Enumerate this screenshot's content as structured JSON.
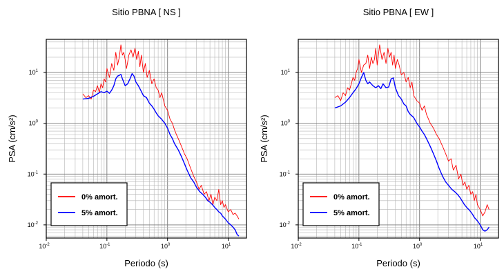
{
  "chart_data": [
    {
      "type": "line",
      "title": "Sitio PBNA [ NS ]",
      "xlabel": "Periodo (s)",
      "ylabel": "PSA (cm/s²)",
      "xscale": "log",
      "yscale": "log",
      "xlim": [
        0.01,
        20
      ],
      "ylim": [
        0.0055,
        45
      ],
      "grid": true,
      "legend": "bottom-left",
      "series": [
        {
          "name": "0% amort.",
          "color": "#ff0000",
          "x": [
            0.04,
            0.045,
            0.05,
            0.055,
            0.06,
            0.065,
            0.07,
            0.075,
            0.08,
            0.085,
            0.09,
            0.095,
            0.1,
            0.11,
            0.12,
            0.13,
            0.14,
            0.15,
            0.16,
            0.17,
            0.18,
            0.19,
            0.2,
            0.21,
            0.22,
            0.23,
            0.25,
            0.27,
            0.29,
            0.31,
            0.33,
            0.35,
            0.37,
            0.4,
            0.43,
            0.46,
            0.5,
            0.55,
            0.6,
            0.65,
            0.7,
            0.75,
            0.8,
            0.9,
            1.0,
            1.1,
            1.2,
            1.3,
            1.4,
            1.5,
            1.7,
            1.9,
            2.1,
            2.4,
            2.7,
            3.0,
            3.3,
            3.6,
            4.0,
            4.4,
            4.8,
            5.2,
            5.6,
            6.0,
            6.5,
            7.0,
            7.5,
            8.0,
            8.5,
            9.0,
            10,
            11,
            12,
            13,
            14,
            15
          ],
          "values": [
            3.8,
            3.2,
            3.5,
            3.0,
            4.5,
            4.2,
            5.5,
            4.0,
            6.0,
            5.0,
            7.5,
            6.5,
            12,
            8.0,
            15,
            11,
            25,
            14,
            20,
            35,
            22,
            25,
            18,
            12,
            16,
            22,
            28,
            20,
            30,
            18,
            26,
            13,
            22,
            10,
            15,
            8.0,
            11,
            6.0,
            7.5,
            5.0,
            4.5,
            3.2,
            4.0,
            2.2,
            1.8,
            1.2,
            1.0,
            0.75,
            0.6,
            0.5,
            0.35,
            0.25,
            0.2,
            0.13,
            0.09,
            0.07,
            0.05,
            0.06,
            0.04,
            0.045,
            0.03,
            0.04,
            0.025,
            0.035,
            0.03,
            0.05,
            0.025,
            0.03,
            0.022,
            0.025,
            0.018,
            0.02,
            0.016,
            0.017,
            0.015,
            0.013
          ]
        },
        {
          "name": "5% amort.",
          "color": "#0000ff",
          "x": [
            0.04,
            0.05,
            0.06,
            0.07,
            0.08,
            0.09,
            0.1,
            0.11,
            0.12,
            0.13,
            0.14,
            0.15,
            0.16,
            0.17,
            0.18,
            0.2,
            0.22,
            0.24,
            0.26,
            0.28,
            0.3,
            0.33,
            0.36,
            0.4,
            0.45,
            0.5,
            0.55,
            0.6,
            0.65,
            0.7,
            0.8,
            0.9,
            1.0,
            1.1,
            1.2,
            1.3,
            1.5,
            1.7,
            1.9,
            2.1,
            2.4,
            2.7,
            3.0,
            3.4,
            3.8,
            4.2,
            4.6,
            5.0,
            5.5,
            6.0,
            6.5,
            7.0,
            7.5,
            8.0,
            9.0,
            10,
            11,
            12,
            13,
            14,
            15
          ],
          "values": [
            3.0,
            3.1,
            3.4,
            3.8,
            4.2,
            4.0,
            4.3,
            3.9,
            4.5,
            5.5,
            7.5,
            8.5,
            8.8,
            9.2,
            7.5,
            5.5,
            6.0,
            7.5,
            9.5,
            8.5,
            6.5,
            5.5,
            4.5,
            3.5,
            3.2,
            2.5,
            2.2,
            1.9,
            1.6,
            1.4,
            1.2,
            1.0,
            0.8,
            0.6,
            0.5,
            0.4,
            0.3,
            0.22,
            0.16,
            0.12,
            0.085,
            0.07,
            0.055,
            0.045,
            0.04,
            0.035,
            0.03,
            0.028,
            0.025,
            0.022,
            0.02,
            0.018,
            0.017,
            0.015,
            0.013,
            0.011,
            0.01,
            0.009,
            0.008,
            0.0065,
            0.006
          ]
        }
      ]
    },
    {
      "type": "line",
      "title": "Sitio PBNA [ EW ]",
      "xlabel": "Periodo (s)",
      "ylabel": "PSA (cm/s²)",
      "xscale": "log",
      "yscale": "log",
      "xlim": [
        0.01,
        20
      ],
      "ylim": [
        0.0055,
        45
      ],
      "grid": true,
      "legend": "bottom-left",
      "series": [
        {
          "name": "0% amort.",
          "color": "#ff0000",
          "x": [
            0.04,
            0.045,
            0.05,
            0.055,
            0.06,
            0.065,
            0.07,
            0.075,
            0.08,
            0.085,
            0.09,
            0.095,
            0.1,
            0.11,
            0.12,
            0.13,
            0.14,
            0.15,
            0.16,
            0.17,
            0.18,
            0.19,
            0.2,
            0.22,
            0.24,
            0.26,
            0.28,
            0.3,
            0.32,
            0.34,
            0.36,
            0.38,
            0.4,
            0.43,
            0.46,
            0.5,
            0.55,
            0.6,
            0.65,
            0.7,
            0.75,
            0.8,
            0.9,
            1.0,
            1.1,
            1.2,
            1.3,
            1.5,
            1.7,
            1.9,
            2.1,
            2.4,
            2.7,
            3.0,
            3.3,
            3.6,
            4.0,
            4.4,
            4.8,
            5.2,
            5.6,
            6.0,
            6.5,
            7.0,
            7.5,
            8.0,
            8.5,
            9.0,
            10,
            11,
            12,
            13,
            14
          ],
          "values": [
            3.2,
            3.5,
            2.8,
            4.0,
            3.5,
            5.0,
            4.5,
            6.0,
            8.0,
            7.0,
            10,
            12,
            18,
            10,
            14,
            15,
            22,
            12,
            20,
            15,
            18,
            30,
            14,
            35,
            18,
            25,
            15,
            30,
            20,
            25,
            14,
            22,
            12,
            18,
            14,
            9.0,
            10,
            6.5,
            8.0,
            5.0,
            6.5,
            3.5,
            2.8,
            2.5,
            1.8,
            2.2,
            1.5,
            1.0,
            0.8,
            0.6,
            0.5,
            0.35,
            0.25,
            0.18,
            0.2,
            0.12,
            0.15,
            0.08,
            0.1,
            0.06,
            0.07,
            0.05,
            0.06,
            0.04,
            0.045,
            0.03,
            0.04,
            0.025,
            0.02,
            0.015,
            0.018,
            0.025,
            0.02
          ]
        },
        {
          "name": "5% amort.",
          "color": "#0000ff",
          "x": [
            0.04,
            0.05,
            0.06,
            0.07,
            0.08,
            0.09,
            0.1,
            0.11,
            0.12,
            0.13,
            0.14,
            0.15,
            0.17,
            0.19,
            0.21,
            0.23,
            0.25,
            0.28,
            0.31,
            0.34,
            0.37,
            0.4,
            0.45,
            0.5,
            0.55,
            0.6,
            0.65,
            0.7,
            0.8,
            0.9,
            1.0,
            1.1,
            1.2,
            1.3,
            1.5,
            1.7,
            1.9,
            2.1,
            2.4,
            2.7,
            3.0,
            3.4,
            3.8,
            4.2,
            4.6,
            5.0,
            5.5,
            6.0,
            6.5,
            7.0,
            7.5,
            8.0,
            9.0,
            10,
            11,
            12,
            13,
            14
          ],
          "values": [
            2.0,
            2.2,
            2.6,
            3.2,
            4.0,
            4.8,
            6.0,
            8.0,
            10,
            7.0,
            6.0,
            6.5,
            5.5,
            5.0,
            5.5,
            4.8,
            6.0,
            5.0,
            5.2,
            7.5,
            7.8,
            5.0,
            3.5,
            3.0,
            2.4,
            2.2,
            1.7,
            1.5,
            1.3,
            1.0,
            0.85,
            0.7,
            0.6,
            0.5,
            0.35,
            0.25,
            0.18,
            0.13,
            0.09,
            0.07,
            0.06,
            0.05,
            0.045,
            0.04,
            0.035,
            0.03,
            0.025,
            0.022,
            0.02,
            0.018,
            0.016,
            0.014,
            0.012,
            0.01,
            0.008,
            0.0075,
            0.008,
            0.009
          ]
        }
      ]
    }
  ]
}
